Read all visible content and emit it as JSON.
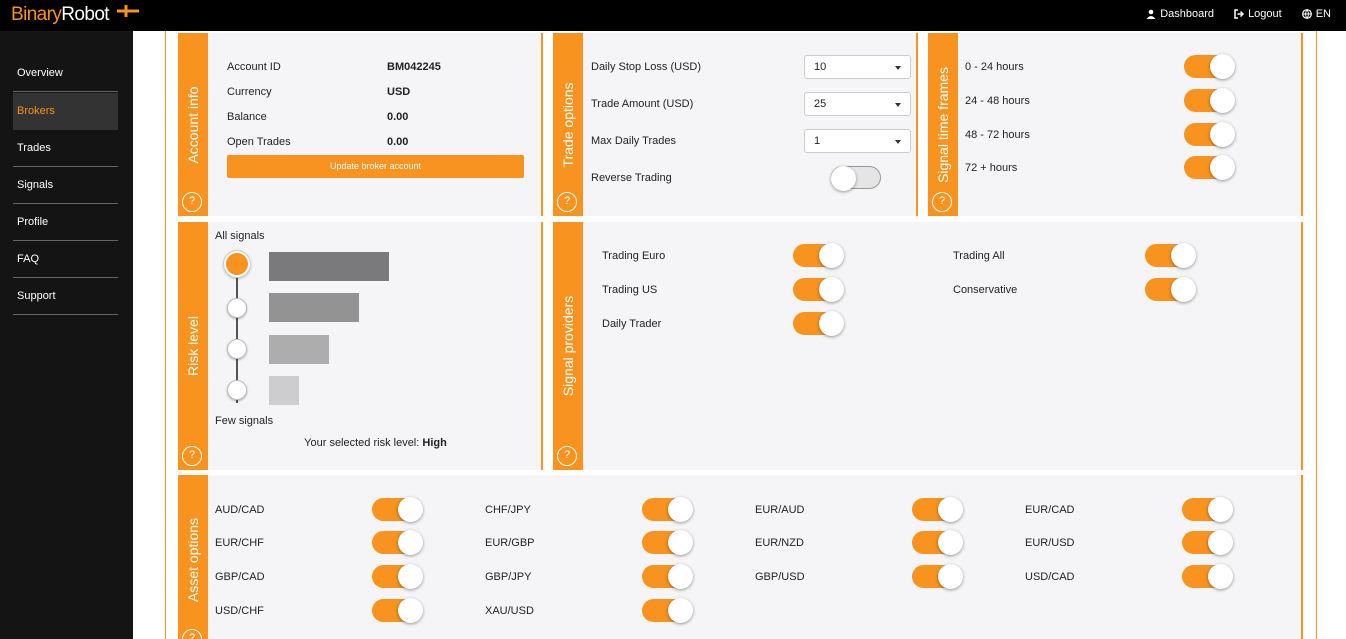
{
  "header": {
    "logo_part1": "Binary",
    "logo_part2": "Robot",
    "nav": [
      {
        "label": "Dashboard",
        "icon": "user-icon"
      },
      {
        "label": "Logout",
        "icon": "logout-icon"
      },
      {
        "label": "EN",
        "icon": "globe-icon"
      }
    ]
  },
  "sidebar": {
    "items": [
      {
        "label": "Overview"
      },
      {
        "label": "Brokers",
        "active": true
      },
      {
        "label": "Trades"
      },
      {
        "label": "Signals"
      },
      {
        "label": "Profile"
      },
      {
        "label": "FAQ"
      },
      {
        "label": "Support"
      }
    ]
  },
  "account_info": {
    "title": "Account info",
    "help": "?",
    "rows": [
      {
        "label": "Account ID",
        "value": "BM042245"
      },
      {
        "label": "Currency",
        "value": "USD"
      },
      {
        "label": "Balance",
        "value": "0.00"
      },
      {
        "label": "Open Trades",
        "value": "0.00"
      }
    ],
    "update_button": "Update broker account"
  },
  "trade_options": {
    "title": "Trade options",
    "help": "?",
    "stop_loss": {
      "label": "Daily Stop Loss (USD)",
      "value": "10"
    },
    "trade_amount": {
      "label": "Trade Amount (USD)",
      "value": "25"
    },
    "max_trades": {
      "label": "Max Daily Trades",
      "value": "1"
    },
    "reverse_trading": {
      "label": "Reverse Trading",
      "on": false
    }
  },
  "signal_time_frames": {
    "title": "Signal time frames",
    "help": "?",
    "items": [
      {
        "label": "0 - 24 hours",
        "on": true
      },
      {
        "label": "24 - 48 hours",
        "on": true
      },
      {
        "label": "48 - 72 hours",
        "on": true
      },
      {
        "label": "72 + hours",
        "on": true
      }
    ]
  },
  "risk_level": {
    "title": "Risk level",
    "help": "?",
    "top_label": "All signals",
    "bottom_label": "Few signals",
    "selected_prefix": "Your selected risk level:",
    "selected_value": "High",
    "selected_index": 0,
    "bar_colors": [
      "#7a797b",
      "#939393",
      "#adadad",
      "#cdcdcf"
    ]
  },
  "signal_providers": {
    "title": "Signal providers",
    "help": "?",
    "items": [
      {
        "label": "Trading Euro",
        "on": true
      },
      {
        "label": "Trading US",
        "on": true
      },
      {
        "label": "Daily Trader",
        "on": true
      },
      {
        "label": "Trading All",
        "on": true
      },
      {
        "label": "Conservative",
        "on": true
      }
    ]
  },
  "asset_options": {
    "title": "Asset options",
    "help": "?",
    "items": [
      {
        "label": "AUD/CAD",
        "on": true
      },
      {
        "label": "EUR/CHF",
        "on": true
      },
      {
        "label": "GBP/CAD",
        "on": true
      },
      {
        "label": "USD/CHF",
        "on": true
      },
      {
        "label": "CHF/JPY",
        "on": true
      },
      {
        "label": "EUR/GBP",
        "on": true
      },
      {
        "label": "GBP/JPY",
        "on": true
      },
      {
        "label": "XAU/USD",
        "on": true
      },
      {
        "label": "EUR/AUD",
        "on": true
      },
      {
        "label": "EUR/NZD",
        "on": true
      },
      {
        "label": "GBP/USD",
        "on": true
      },
      {
        "label": "EUR/CAD",
        "on": true
      },
      {
        "label": "EUR/USD",
        "on": true
      },
      {
        "label": "USD/CAD",
        "on": true
      }
    ]
  },
  "colors": {
    "accent": "#f7931e",
    "topbar": "#000000",
    "sidebar": "#141414",
    "panel": "#f5f5f7"
  }
}
